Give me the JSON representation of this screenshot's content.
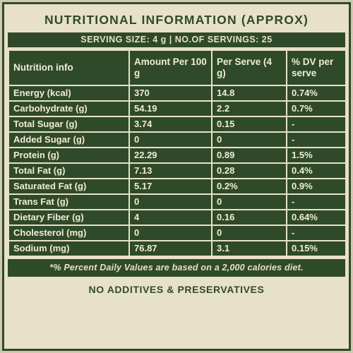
{
  "title": "NUTRITIONAL INFORMATION (APPROX)",
  "serving": "SERVING SIZE: 4 g | NO.OF SERVINGS: 25",
  "headers": [
    "Nutrition info",
    "Amount Per 100 g",
    "Per Serve (4 g)",
    "% DV per serve"
  ],
  "rows": [
    [
      "Energy (kcal)",
      "370",
      "14.8",
      "0.74%"
    ],
    [
      "Carbohydrate (g)",
      "54.19",
      "2.2",
      "0.7%"
    ],
    [
      "Total Sugar (g)",
      "3.74",
      "0.15",
      "-"
    ],
    [
      "Added Sugar (g)",
      "0",
      "0",
      "-"
    ],
    [
      "Protein (g)",
      "22.29",
      "0.89",
      "1.5%"
    ],
    [
      "Total Fat (g)",
      "7.13",
      "0.28",
      "0.4%"
    ],
    [
      "Saturated Fat (g)",
      "5.17",
      "0.2%",
      "0.9%"
    ],
    [
      "Trans Fat (g)",
      "0",
      "0",
      "-"
    ],
    [
      "Dietary Fiber (g)",
      "4",
      "0.16",
      "0.64%"
    ],
    [
      "Cholesterol (mg)",
      "0",
      "0",
      "-"
    ],
    [
      "Sodium (mg)",
      "76.87",
      "3.1",
      "0.15%"
    ]
  ],
  "footnote": "*% Percent Daily Values are based on a 2,000 calories diet.",
  "footer": "NO ADDITIVES & PRESERVATIVES",
  "colors": {
    "dark_green": "#2f4a28",
    "cream": "#e7e1c8"
  }
}
